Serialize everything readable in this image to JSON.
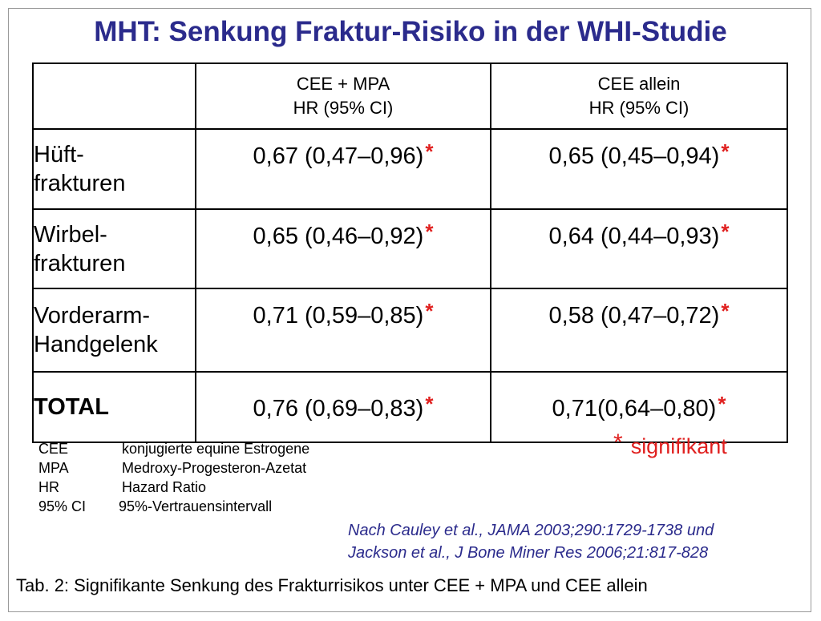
{
  "title": "MHT: Senkung Fraktur-Risiko in der WHI-Studie",
  "table": {
    "columns": [
      {
        "line1": "CEE + MPA",
        "line2": "HR (95% CI)"
      },
      {
        "line1": "CEE allein",
        "line2": "HR (95% CI)"
      }
    ],
    "rows": [
      {
        "label_line1": "Hüft-",
        "label_line2": "frakturen",
        "cee_mpa": "0,67 (0,47–0,96)",
        "cee_allein": "0,65 (0,45–0,94)"
      },
      {
        "label_line1": "Wirbel-",
        "label_line2": "frakturen",
        "cee_mpa": "0,65 (0,46–0,92)",
        "cee_allein": "0,64 (0,44–0,93)"
      },
      {
        "label_line1": "Vorderarm-",
        "label_line2": "Handgelenk",
        "cee_mpa": "0,71 (0,59–0,85)",
        "cee_allein": "0,58 (0,47–0,72)"
      },
      {
        "label_line1": "TOTAL",
        "label_line2": "",
        "cee_mpa": "0,76 (0,69–0,83)",
        "cee_allein": "0,71(0,64–0,80)"
      }
    ],
    "significance_marker": "*"
  },
  "significance_note": {
    "marker": "*",
    "text": "signifikant"
  },
  "legend": [
    {
      "abbr": "CEE",
      "desc": "konjugierte equine Estrogene"
    },
    {
      "abbr": "MPA",
      "desc": "Medroxy-Progesteron-Azetat"
    },
    {
      "abbr": "HR",
      "desc": "Hazard Ratio"
    },
    {
      "abbr": "95% CI",
      "desc": "95%-Vertrauensintervall"
    }
  ],
  "reference": {
    "line1": "Nach Cauley et al., JAMA 2003;290:1729-1738 und",
    "line2": "Jackson et al., J Bone Miner Res 2006;21:817-828"
  },
  "caption": "Tab. 2: Signifikante Senkung des Frakturrisikos unter CEE + MPA und CEE allein",
  "colors": {
    "title": "#2b2b8c",
    "significance": "#e0201f",
    "reference": "#2b2b8c"
  }
}
